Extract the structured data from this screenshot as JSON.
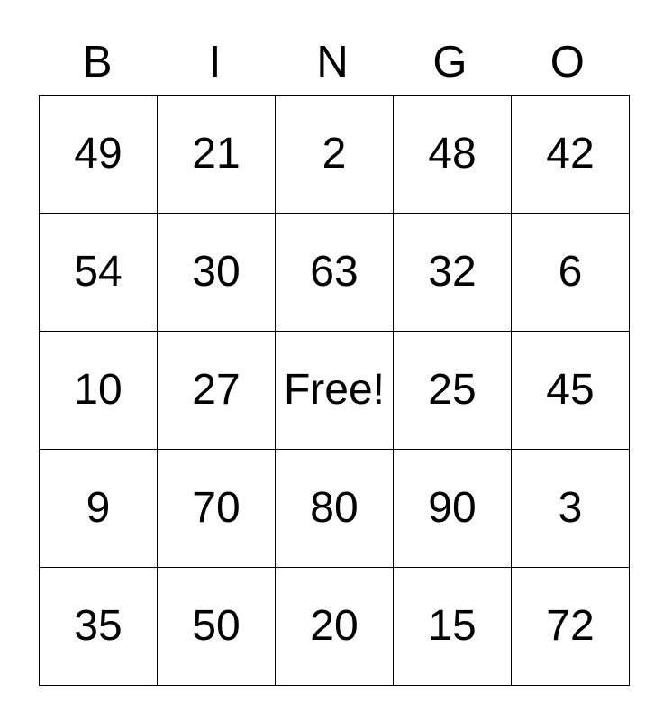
{
  "card": {
    "title": "BINGO",
    "header_letters": [
      "B",
      "I",
      "N",
      "G",
      "O"
    ],
    "free_cell_label": "Free!",
    "free_cell_position": {
      "row": 2,
      "col": 2
    },
    "rows": [
      [
        "49",
        "21",
        "2",
        "48",
        "42"
      ],
      [
        "54",
        "30",
        "63",
        "32",
        "6"
      ],
      [
        "10",
        "27",
        "Free!",
        "25",
        "45"
      ],
      [
        "9",
        "70",
        "80",
        "90",
        "3"
      ],
      [
        "35",
        "50",
        "20",
        "15",
        "72"
      ]
    ]
  },
  "colors": {
    "background": "#ffffff",
    "text": "#000000",
    "grid_border": "#000000"
  }
}
